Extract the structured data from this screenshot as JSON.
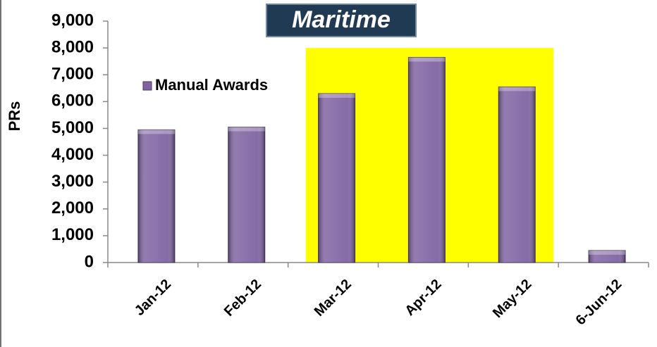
{
  "chart_data": {
    "type": "bar",
    "title": "Maritime",
    "y_label": "PRs",
    "categories": [
      "Jan-12",
      "Feb-12",
      "Mar-12",
      "Apr-12",
      "May-12",
      "6-Jun-12"
    ],
    "series": [
      {
        "name": "Manual Awards",
        "color": "#8064a2",
        "values": [
          4950,
          5050,
          6300,
          7650,
          6550,
          450
        ]
      }
    ],
    "ylim": [
      0,
      9000
    ],
    "yticks": [
      0,
      {
        "value": 1000,
        "label": "1,000"
      },
      {
        "value": 2000,
        "label": "2,000"
      },
      {
        "value": 3000,
        "label": "3,000"
      },
      {
        "value": 4000,
        "label": "4,000"
      },
      {
        "value": 5000,
        "label": "5,000"
      },
      {
        "value": 6000,
        "label": "6,000"
      },
      {
        "value": 7000,
        "label": "7,000"
      },
      {
        "value": 8000,
        "label": "8,000"
      },
      {
        "value": 9000,
        "label": "9,000"
      }
    ],
    "grid": false,
    "legend": "upper left",
    "highlight": {
      "from": "Mar-12",
      "to": "May-12",
      "top": 8000,
      "color": "#ffff00"
    }
  }
}
